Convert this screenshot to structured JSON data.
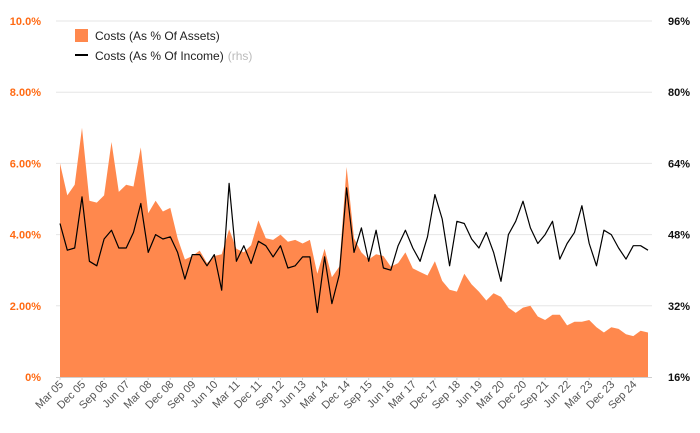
{
  "colors": {
    "area": "#ff884d",
    "line": "#000000",
    "left_axis_text": "#ff6a13",
    "right_axis_text": "#111111",
    "grid": "#e6e6e6",
    "axis_line": "#cfcfcf"
  },
  "legend": {
    "position": "top-left",
    "items": [
      {
        "label": "Costs (As % Of Assets)",
        "suffix": "",
        "swatch": "area"
      },
      {
        "label": "Costs (As % Of Income)",
        "suffix": "(rhs)",
        "swatch": "line"
      }
    ]
  },
  "chart_data": {
    "type": "area",
    "grid": true,
    "x_tick_labels": [
      "Mar 05",
      "Dec 05",
      "Sep 06",
      "Jun 07",
      "Mar 08",
      "Dec 08",
      "Sep 09",
      "Jun 10",
      "Mar 11",
      "Dec 11",
      "Sep 12",
      "Jun 13",
      "Mar 14",
      "Dec 14",
      "Sep 15",
      "Jun 16",
      "Mar 17",
      "Dec 17",
      "Sep 18",
      "Jun 19",
      "Mar 20",
      "Dec 20",
      "Sep 21",
      "Jun 22",
      "Mar 23",
      "Dec 23",
      "Sep 24"
    ],
    "left_axis": {
      "min": 0,
      "max": 10,
      "ticks": [
        "0%",
        "2.00%",
        "4.00%",
        "6.00%",
        "8.00%",
        "10.0%"
      ]
    },
    "right_axis": {
      "min": 16,
      "max": 96,
      "ticks": [
        "16%",
        "32%",
        "48%",
        "64%",
        "80%",
        "96%"
      ]
    },
    "series": [
      {
        "name": "Costs (As % Of Assets)",
        "axis": "left",
        "kind": "area",
        "values": [
          6.0,
          5.1,
          5.4,
          7.0,
          4.95,
          4.9,
          5.1,
          6.6,
          5.2,
          5.4,
          5.35,
          6.45,
          4.6,
          4.95,
          4.65,
          4.75,
          3.9,
          3.3,
          3.4,
          3.55,
          3.2,
          3.4,
          3.45,
          4.15,
          3.6,
          3.5,
          3.7,
          4.4,
          3.9,
          3.85,
          4.0,
          3.8,
          3.85,
          3.75,
          3.85,
          2.9,
          3.6,
          2.8,
          3.1,
          5.9,
          3.9,
          3.5,
          3.3,
          3.45,
          3.4,
          3.1,
          3.2,
          3.5,
          3.05,
          2.95,
          2.85,
          3.25,
          2.7,
          2.45,
          2.4,
          2.9,
          2.6,
          2.4,
          2.15,
          2.35,
          2.25,
          1.95,
          1.8,
          1.95,
          2.0,
          1.7,
          1.6,
          1.75,
          1.75,
          1.45,
          1.55,
          1.55,
          1.6,
          1.4,
          1.25,
          1.4,
          1.35,
          1.2,
          1.15,
          1.3,
          1.25
        ]
      },
      {
        "name": "Costs (As % Of Income)",
        "axis": "right",
        "kind": "line",
        "values": [
          50.5,
          44.5,
          45.0,
          56.5,
          42.0,
          41.0,
          47.0,
          49.0,
          45.0,
          45.0,
          48.5,
          55.0,
          44.0,
          48.0,
          47.0,
          47.5,
          44.0,
          38.0,
          43.5,
          43.5,
          41.0,
          43.5,
          35.5,
          59.5,
          42.0,
          45.5,
          41.5,
          46.5,
          45.5,
          43.0,
          45.5,
          40.5,
          41.0,
          43.0,
          43.0,
          30.5,
          43.0,
          32.5,
          39.0,
          58.5,
          44.0,
          49.5,
          42.0,
          49.0,
          40.5,
          40.0,
          45.5,
          49.0,
          45.0,
          42.0,
          47.5,
          57.0,
          51.5,
          41.0,
          51.0,
          50.5,
          47.0,
          45.0,
          48.5,
          44.0,
          37.5,
          48.0,
          51.0,
          55.5,
          49.5,
          46.0,
          48.0,
          51.0,
          42.5,
          46.0,
          48.5,
          54.5,
          46.0,
          41.0,
          49.0,
          48.0,
          45.0,
          42.5,
          45.5,
          45.5,
          44.5
        ]
      }
    ]
  }
}
